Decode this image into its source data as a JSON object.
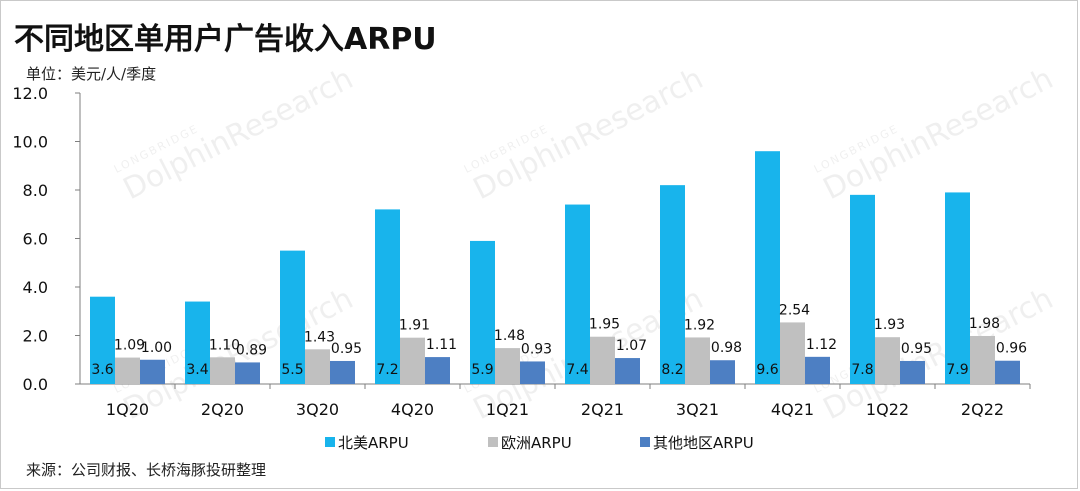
{
  "title": "不同地区单用户广告收入ARPU",
  "unit_label": "单位：美元/人/季度",
  "source": "来源：公司财报、长桥海豚投研整理",
  "watermark": {
    "small": "LONGBRIDGE",
    "large": "DolphinResearch"
  },
  "colors": {
    "north_america": "#18b4ec",
    "europe": "#c0c0c0",
    "other": "#4d7fc3"
  },
  "chart_data": {
    "type": "bar",
    "title": "不同地区单用户广告收入ARPU",
    "ylabel": "单位：美元/人/季度",
    "ylim": [
      0,
      12
    ],
    "yticks": [
      "0.0",
      "2.0",
      "4.0",
      "6.0",
      "8.0",
      "10.0",
      "12.0"
    ],
    "grid": false,
    "legend": "bottom",
    "categories": [
      "1Q20",
      "2Q20",
      "3Q20",
      "4Q20",
      "1Q21",
      "2Q21",
      "3Q21",
      "4Q21",
      "1Q22",
      "2Q22"
    ],
    "series": [
      {
        "name": "北美ARPU",
        "values": [
          3.6,
          3.4,
          5.5,
          7.2,
          5.9,
          7.4,
          8.2,
          9.6,
          7.8,
          7.9
        ],
        "labels": [
          "3.6",
          "3.4",
          "5.5",
          "7.2",
          "5.9",
          "7.4",
          "8.2",
          "9.6",
          "7.8",
          "7.9"
        ]
      },
      {
        "name": "欧洲ARPU",
        "values": [
          1.09,
          1.1,
          1.43,
          1.91,
          1.48,
          1.95,
          1.92,
          2.54,
          1.93,
          1.98
        ],
        "labels": [
          "1.09",
          "1.10",
          "1.43",
          "1.91",
          "1.48",
          "1.95",
          "1.92",
          "2.54",
          "1.93",
          "1.98"
        ]
      },
      {
        "name": "其他地区ARPU",
        "values": [
          1.0,
          0.89,
          0.95,
          1.11,
          0.93,
          1.07,
          0.98,
          1.12,
          0.95,
          0.96
        ],
        "labels": [
          "1.00",
          "0.89",
          "0.95",
          "1.11",
          "0.93",
          "1.07",
          "0.98",
          "1.12",
          "0.95",
          "0.96"
        ]
      }
    ]
  }
}
